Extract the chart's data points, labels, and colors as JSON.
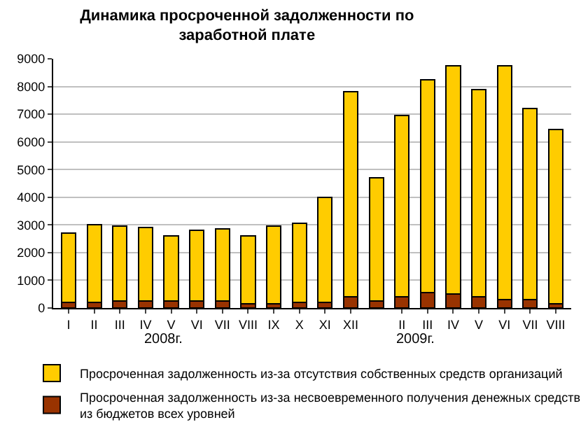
{
  "chart_data": {
    "type": "bar",
    "title": "Динамика просроченной задолженности по заработной плате",
    "categories": [
      "I",
      "II",
      "III",
      "IV",
      "V",
      "VI",
      "VII",
      "VIII",
      "IX",
      "X",
      "XI",
      "XII",
      null,
      "II",
      "III",
      "IV",
      "V",
      "VI",
      "VII",
      "VIII"
    ],
    "stacked": true,
    "series": [
      {
        "name": "Просроченная задолженность из-за несвоевременного получения денежных средств из бюджетов всех уровней",
        "color": "#993300",
        "values": [
          200,
          200,
          250,
          250,
          250,
          250,
          250,
          150,
          150,
          200,
          200,
          400,
          250,
          400,
          550,
          500,
          400,
          300,
          300,
          150
        ]
      },
      {
        "name": "Просроченная задолженность из-за отсутствия собственных средств организаций",
        "color": "#ffcc00",
        "values": [
          2500,
          2800,
          2700,
          2650,
          2350,
          2550,
          2600,
          2450,
          2800,
          2850,
          3800,
          7400,
          4450,
          6550,
          7700,
          8250,
          7500,
          8450,
          6900,
          6300
        ]
      }
    ],
    "ylim": [
      0,
      9000
    ],
    "yticks": [
      0,
      1000,
      2000,
      3000,
      4000,
      5000,
      6000,
      7000,
      8000,
      9000
    ],
    "grid": "y",
    "legend": "bottom",
    "annotations": [
      "2008г.",
      "2009г."
    ]
  }
}
